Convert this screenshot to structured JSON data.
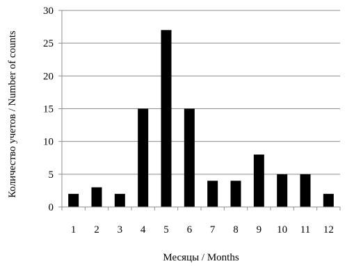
{
  "chart_data": {
    "type": "bar",
    "categories": [
      "1",
      "2",
      "3",
      "4",
      "5",
      "6",
      "7",
      "8",
      "9",
      "10",
      "11",
      "12"
    ],
    "values": [
      2,
      3,
      2,
      15,
      27,
      15,
      4,
      4,
      8,
      5,
      5,
      2
    ],
    "xlabel": "Месяцы / Months",
    "ylabel": "Количество учетов / Number of counts",
    "ylim": [
      0,
      30
    ],
    "yticks": [
      "0",
      "5",
      "10",
      "15",
      "20",
      "25",
      "30"
    ],
    "grid": true,
    "bar_color": "#000000",
    "grid_color": "#8c8c8c"
  }
}
